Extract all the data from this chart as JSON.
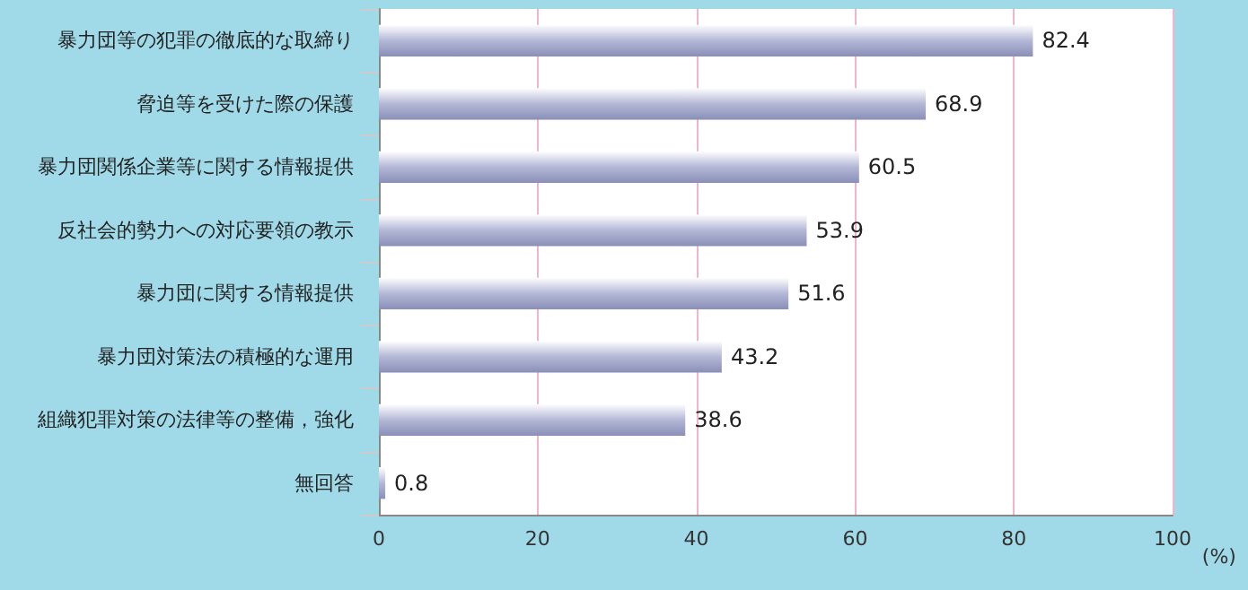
{
  "chart_data": {
    "type": "bar",
    "orientation": "horizontal",
    "categories": [
      "暴力団等の犯罪の徹底的な取締り",
      "脅迫等を受けた際の保護",
      "暴力団関係企業等に関する情報提供",
      "反社会的勢力への対応要領の教示",
      "暴力団に関する情報提供",
      "暴力団対策法の積極的な運用",
      "組織犯罪対策の法律等の整備，強化",
      "無回答"
    ],
    "values": [
      82.4,
      68.9,
      60.5,
      53.9,
      51.6,
      43.2,
      38.6,
      0.8
    ],
    "color": "#b4b8d6",
    "xlim": [
      0,
      100
    ],
    "xticks": [
      0,
      20,
      40,
      60,
      80,
      100
    ],
    "xlabel": "(%)",
    "grid": "x",
    "data_labels": true
  }
}
